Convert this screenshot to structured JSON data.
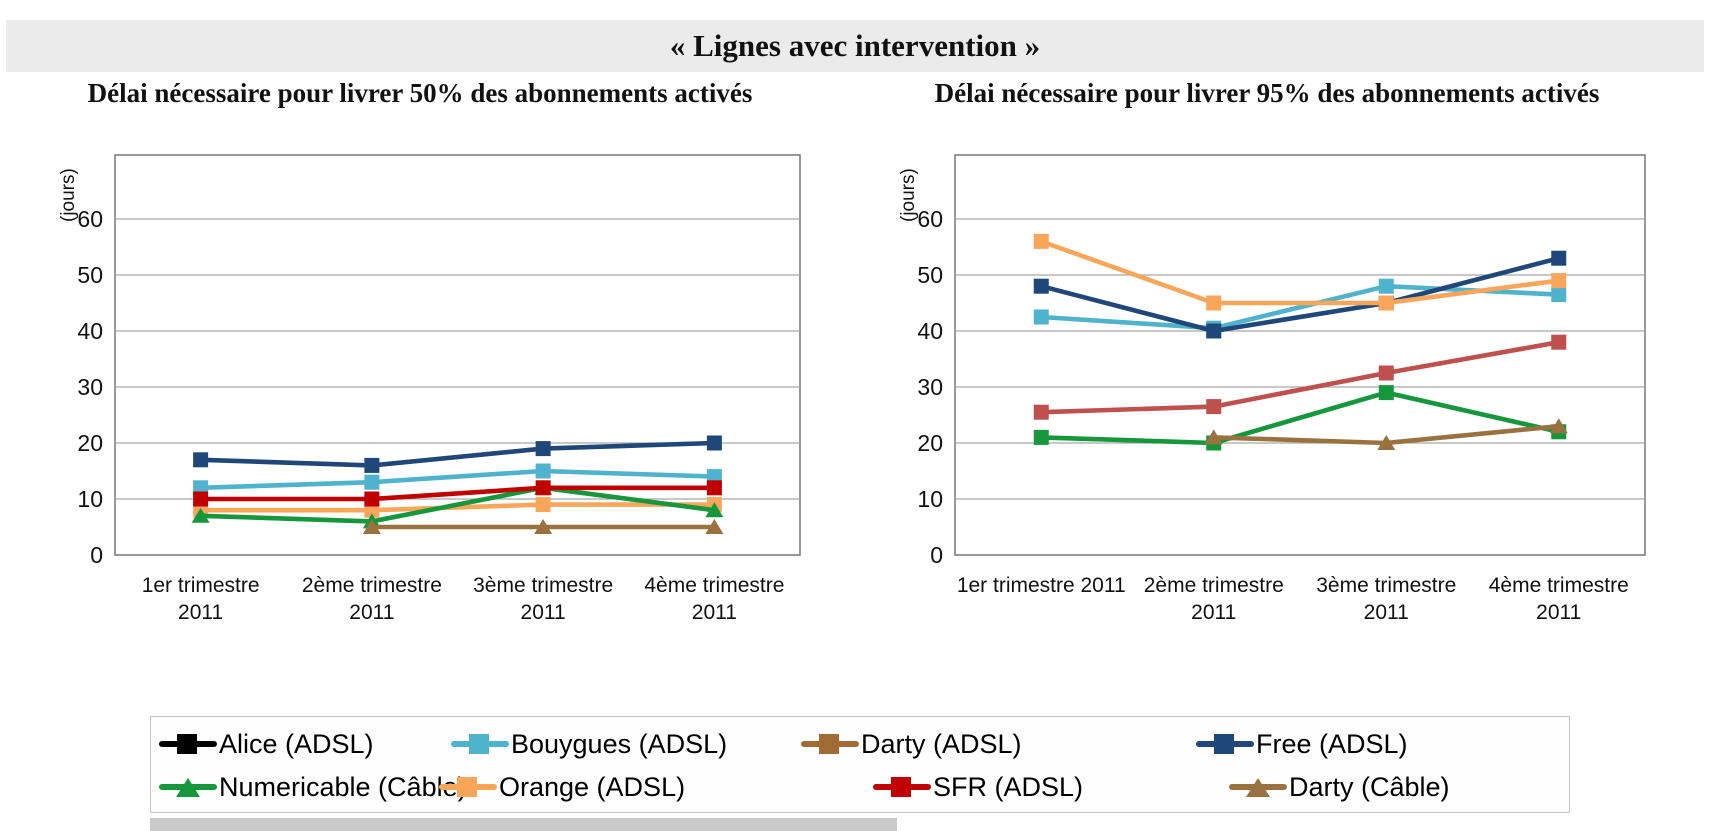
{
  "title": "« Lignes avec intervention »",
  "y_axis_unit": "(jours)",
  "chart_data": [
    {
      "type": "line",
      "title": "Délai nécessaire pour livrer 50% des abonnements activés",
      "ylabel": "(jours)",
      "xlabel": "",
      "ylim": [
        0,
        71
      ],
      "yticks": [
        0,
        10,
        20,
        30,
        40,
        50,
        60
      ],
      "grid": true,
      "categories": [
        "1er trimestre 2011",
        "2ème trimestre 2011",
        "3ème trimestre 2011",
        "4ème trimestre 2011"
      ],
      "category_label_lines": [
        [
          "1er trimestre",
          "2011"
        ],
        [
          "2ème trimestre",
          "2011"
        ],
        [
          "3ème trimestre",
          "2011"
        ],
        [
          "4ème trimestre",
          "2011"
        ]
      ],
      "series": [
        {
          "name": "Free (ADSL)",
          "color": "#1F4779",
          "marker": "square",
          "values": [
            17,
            16,
            19,
            20
          ]
        },
        {
          "name": "Bouygues (ADSL)",
          "color": "#4FB3CE",
          "marker": "square",
          "values": [
            12,
            13,
            15,
            14
          ]
        },
        {
          "name": "Orange (ADSL)",
          "color": "#F9A65B",
          "marker": "square",
          "values": [
            8,
            8,
            9,
            9
          ]
        },
        {
          "name": "Numericable (Câble)",
          "color": "#17973B",
          "marker": "triangle",
          "values": [
            7,
            6,
            12,
            8
          ]
        },
        {
          "name": "Darty (Câble)",
          "color": "#9A7240",
          "marker": "triangle",
          "values": [
            null,
            5,
            5,
            5
          ]
        },
        {
          "name": "SFR (ADSL)",
          "color": "#C00000",
          "marker": "square",
          "values": [
            10,
            10,
            12,
            12
          ]
        }
      ]
    },
    {
      "type": "line",
      "title": "Délai nécessaire pour livrer 95% des abonnements activés",
      "ylabel": "(jours)",
      "xlabel": "",
      "ylim": [
        0,
        71
      ],
      "yticks": [
        0,
        10,
        20,
        30,
        40,
        50,
        60
      ],
      "grid": true,
      "categories": [
        "1er trimestre 2011",
        "2ème trimestre 2011",
        "3ème trimestre 2011",
        "4ème trimestre 2011"
      ],
      "category_label_lines": [
        [
          "1er trimestre 2011"
        ],
        [
          "2ème trimestre",
          "2011"
        ],
        [
          "3ème trimestre",
          "2011"
        ],
        [
          "4ème trimestre",
          "2011"
        ]
      ],
      "series": [
        {
          "name": "Bouygues (ADSL)",
          "color": "#4FB3CE",
          "marker": "square",
          "values": [
            42.5,
            40.5,
            48,
            46.5
          ]
        },
        {
          "name": "Free (ADSL)",
          "color": "#1F4779",
          "marker": "square",
          "values": [
            48,
            40,
            45,
            53
          ]
        },
        {
          "name": "Orange (ADSL)",
          "color": "#F9A65B",
          "marker": "square",
          "values": [
            56,
            45,
            45,
            49
          ]
        },
        {
          "name": "SFR (ADSL)",
          "color": "#C0504D",
          "marker": "square",
          "values": [
            25.5,
            26.5,
            32.5,
            38
          ]
        },
        {
          "name": "Numericable (Câble)",
          "color": "#17973B",
          "marker": "square",
          "values": [
            21,
            20,
            29,
            22
          ]
        },
        {
          "name": "Darty (Câble)",
          "color": "#9A7240",
          "marker": "triangle",
          "values": [
            null,
            21,
            20,
            23
          ]
        }
      ]
    }
  ],
  "legend": {
    "position": "bottom",
    "items": [
      {
        "label": "Alice (ADSL)",
        "color": "#000000",
        "marker": "square"
      },
      {
        "label": "Bouygues (ADSL)",
        "color": "#4FB3CE",
        "marker": "square"
      },
      {
        "label": "Darty (ADSL)",
        "color": "#A26B35",
        "marker": "square"
      },
      {
        "label": "Free (ADSL)",
        "color": "#1F4779",
        "marker": "square"
      },
      {
        "label": "Numericable (Câble)",
        "color": "#17973B",
        "marker": "triangle"
      },
      {
        "label": "Orange (ADSL)",
        "color": "#F9A65B",
        "marker": "square"
      },
      {
        "label": "SFR (ADSL)",
        "color": "#C00000",
        "marker": "square"
      },
      {
        "label": "Darty (Câble)",
        "color": "#9A7240",
        "marker": "triangle"
      }
    ]
  },
  "colors": {
    "title_band_bg": "#EBEBEB",
    "grid_line": "#A6A6A6",
    "plot_border": "#6B6B6B"
  }
}
